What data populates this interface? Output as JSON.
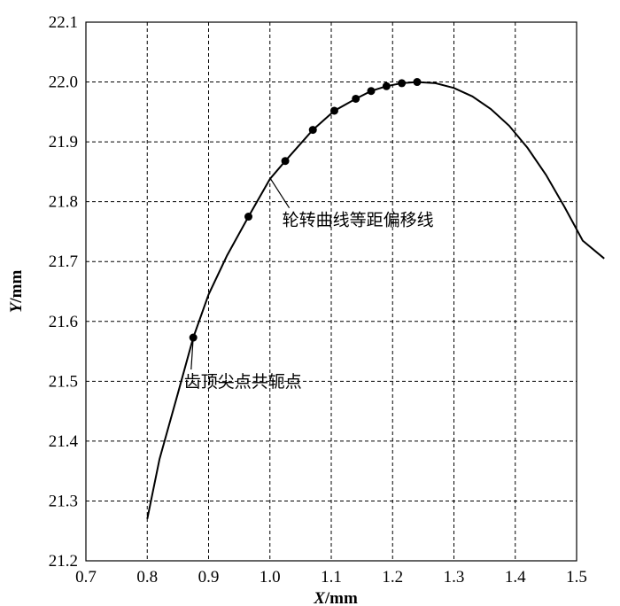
{
  "chart_data": {
    "type": "line",
    "xlabel": {
      "var": "X",
      "unit": "/mm"
    },
    "ylabel": {
      "var": "Y",
      "unit": "/mm"
    },
    "xlim": [
      0.7,
      1.5
    ],
    "ylim": [
      21.2,
      22.1
    ],
    "x_ticks": [
      "0.7",
      "0.8",
      "0.9",
      "1.0",
      "1.1",
      "1.2",
      "1.3",
      "1.4",
      "1.5"
    ],
    "y_ticks": [
      "21.2",
      "21.3",
      "21.4",
      "21.5",
      "21.6",
      "21.7",
      "21.8",
      "21.9",
      "22.0",
      "22.1"
    ],
    "grid": true,
    "series": [
      {
        "style": "solid line",
        "x": [
          0.8,
          0.82,
          0.85,
          0.875,
          0.9,
          0.93,
          0.965,
          1.0,
          1.025,
          1.07,
          1.105,
          1.14,
          1.165,
          1.19,
          1.215,
          1.24,
          1.27,
          1.3,
          1.33,
          1.36,
          1.39,
          1.42,
          1.45,
          1.48,
          1.51,
          1.545
        ],
        "y": [
          21.27,
          21.37,
          21.48,
          21.573,
          21.645,
          21.71,
          21.775,
          21.838,
          21.868,
          21.92,
          21.952,
          21.972,
          21.985,
          21.993,
          21.998,
          22.0,
          21.998,
          21.99,
          21.976,
          21.955,
          21.927,
          21.89,
          21.845,
          21.792,
          21.735,
          21.705
        ]
      },
      {
        "style": "markers",
        "x": [
          0.875,
          0.965,
          1.025,
          1.07,
          1.105,
          1.14,
          1.165,
          1.19,
          1.215,
          1.24
        ],
        "y": [
          21.573,
          21.775,
          21.868,
          21.92,
          21.952,
          21.972,
          21.985,
          21.993,
          21.998,
          22.0
        ]
      }
    ],
    "annotations": [
      {
        "text": "轮转曲线等距偏移线",
        "point": [
          1.0,
          21.84
        ],
        "text_pos": [
          1.02,
          21.76
        ]
      },
      {
        "text": "齿顶尖点共轭点",
        "point": [
          0.875,
          21.573
        ],
        "text_pos": [
          0.86,
          21.49
        ]
      }
    ]
  }
}
